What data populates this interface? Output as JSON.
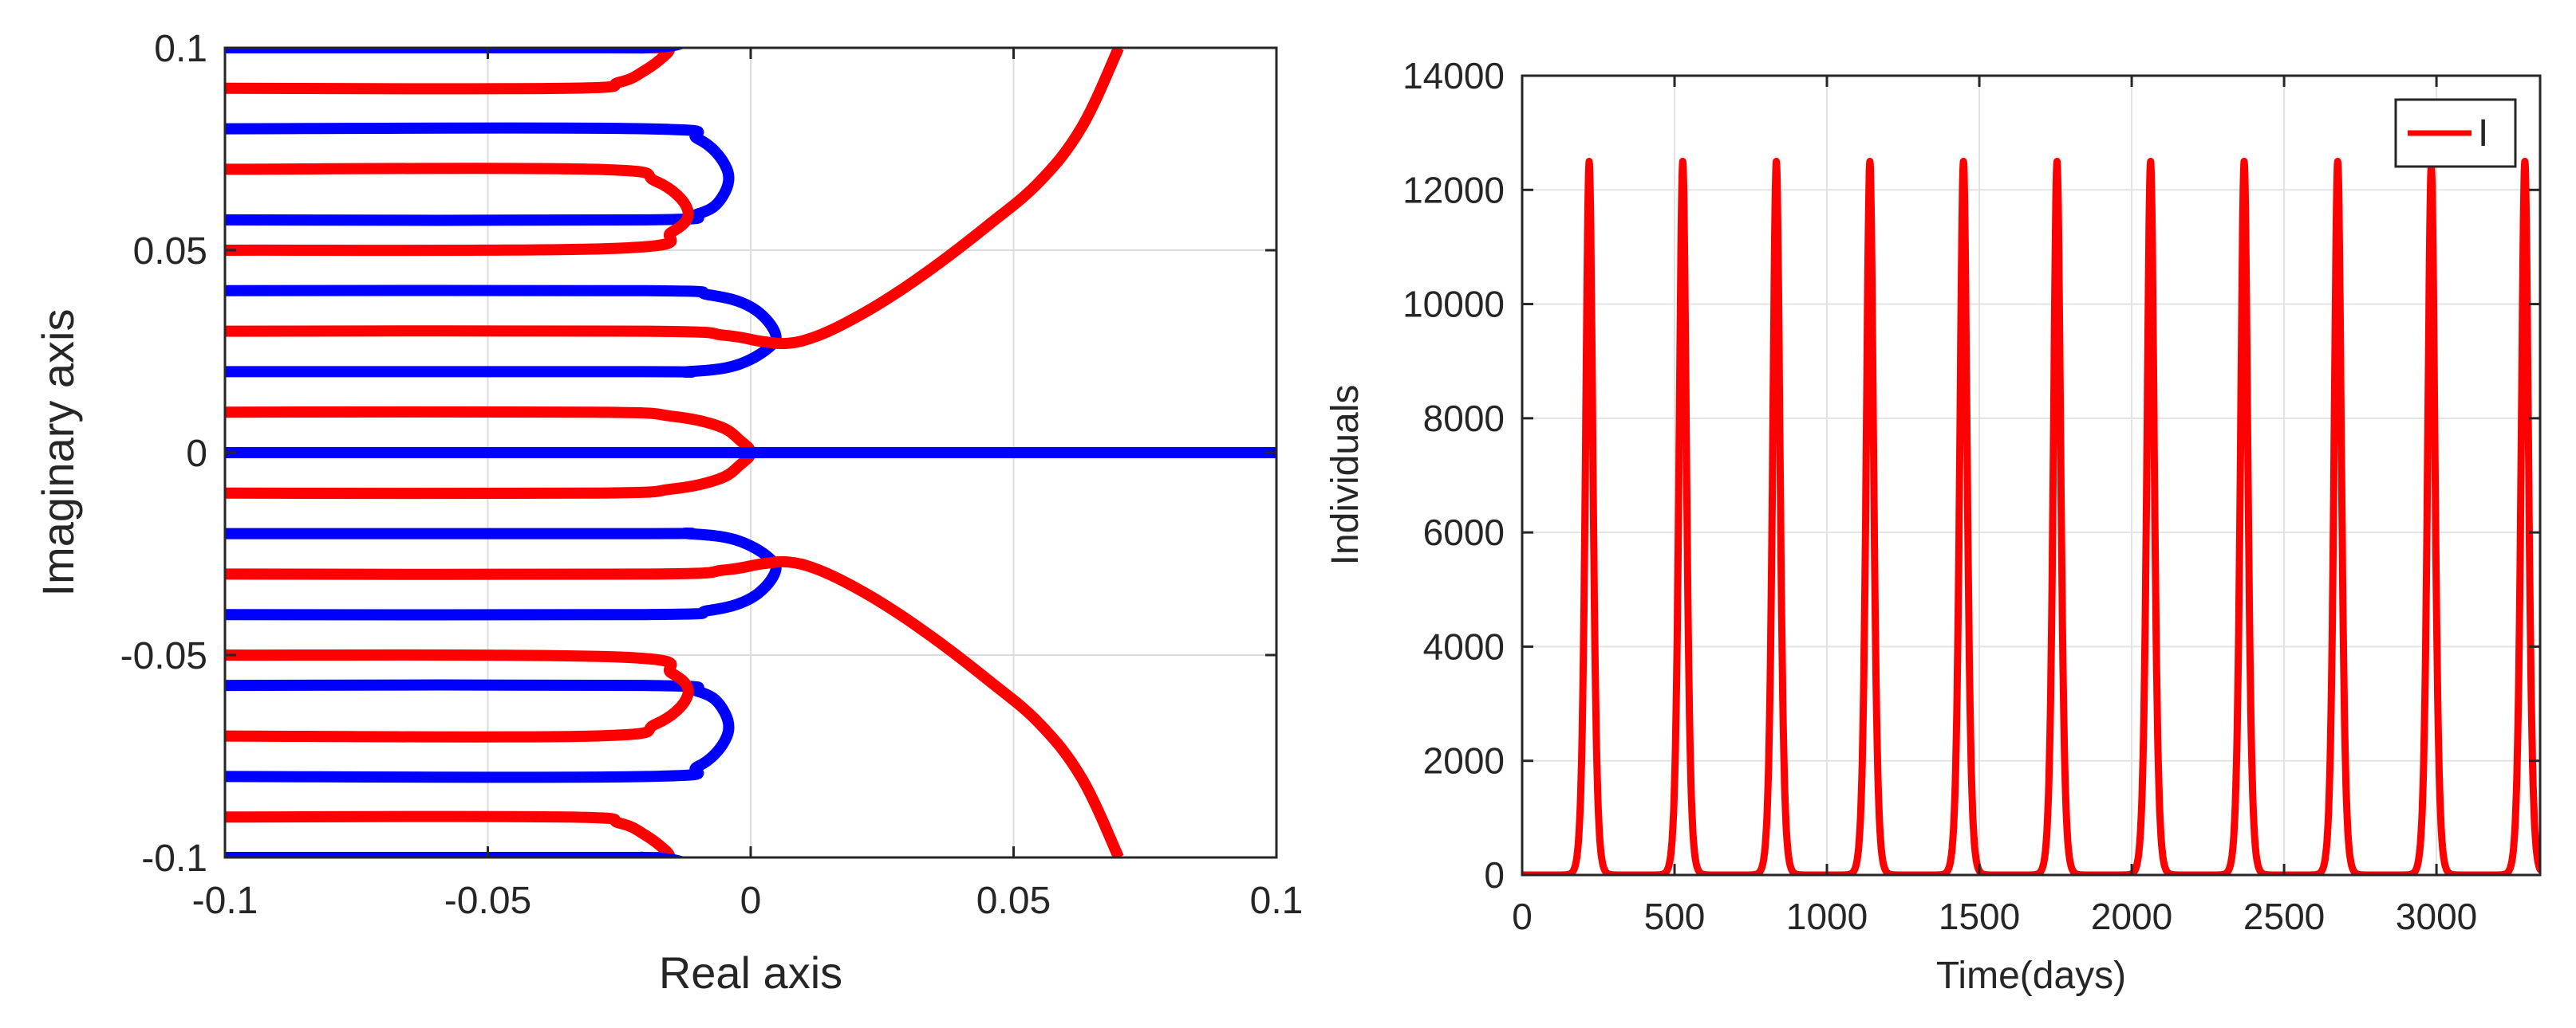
{
  "chart_data": [
    {
      "type": "line",
      "xlabel": "Real axis",
      "ylabel": "Imaginary axis",
      "xlim": [
        -0.1,
        0.1
      ],
      "ylim": [
        -0.1,
        0.1
      ],
      "xticks": [
        -0.1,
        -0.05,
        0,
        0.05,
        0.1
      ],
      "xtick_labels": [
        "-0.1",
        "-0.05",
        "0",
        "0.05",
        "0.1"
      ],
      "yticks": [
        -0.1,
        -0.05,
        0,
        0.05,
        0.1
      ],
      "ytick_labels": [
        "-0.1",
        "-0.05",
        "0",
        "0.05",
        "0.1"
      ],
      "grid": true,
      "colors": {
        "red": "#ff0000",
        "blue": "#0000ff"
      },
      "series": [
        {
          "color": "#ff0000",
          "kind": "branch",
          "x": [
            -0.1,
            -0.035,
            -0.025,
            -0.02,
            -0.016,
            -0.0155,
            -0.016,
            -0.02,
            -0.025,
            -0.035,
            -0.1
          ],
          "y": [
            0.09,
            0.09,
            0.0915,
            0.0945,
            0.0985,
            0.1,
            0.1,
            0.1,
            0.1,
            0.1,
            0.1
          ]
        },
        {
          "color": "#0000ff",
          "kind": "branch",
          "x": [
            -0.1,
            -0.03,
            -0.02,
            -0.015,
            -0.012
          ],
          "y": [
            0.1,
            0.1,
            0.1,
            0.1005,
            0.1015
          ]
        },
        {
          "color": "#0000ff",
          "kind": "loop",
          "x": [
            -0.1,
            -0.02,
            -0.01,
            -0.0045,
            -0.0055,
            -0.01,
            -0.02,
            -0.1
          ],
          "y": [
            0.08,
            0.08,
            0.0775,
            0.07,
            0.063,
            0.059,
            0.0575,
            0.0575
          ]
        },
        {
          "color": "#ff0000",
          "kind": "loop",
          "x": [
            -0.1,
            -0.03,
            -0.018,
            -0.012,
            -0.015,
            -0.025,
            -0.1
          ],
          "y": [
            0.07,
            0.07,
            0.067,
            0.06,
            0.0545,
            0.0505,
            0.05
          ]
        },
        {
          "color": "#0000ff",
          "kind": "loop",
          "x": [
            -0.1,
            -0.02,
            -0.008,
            0.0,
            0.0045,
            0.0035,
            -0.003,
            -0.012,
            -0.02,
            -0.1
          ],
          "y": [
            0.04,
            0.04,
            0.039,
            0.036,
            0.03,
            0.026,
            0.0215,
            0.02,
            0.02,
            0.02
          ]
        },
        {
          "color": "#ff0000",
          "kind": "branch",
          "x": [
            -0.1,
            -0.02,
            -0.005,
            0.002,
            0.007,
            0.012,
            0.018,
            0.026,
            0.035,
            0.045,
            0.055,
            0.063,
            0.07
          ],
          "y": [
            0.03,
            0.03,
            0.029,
            0.0275,
            0.027,
            0.0285,
            0.032,
            0.038,
            0.046,
            0.056,
            0.067,
            0.0805,
            0.1
          ]
        },
        {
          "color": "#ff0000",
          "kind": "loop",
          "x": [
            -0.1,
            -0.03,
            -0.015,
            -0.006,
            -0.002,
            0.0,
            -0.002,
            -0.006,
            -0.015,
            -0.03,
            -0.1
          ],
          "y": [
            0.01,
            0.01,
            0.009,
            0.0065,
            0.003,
            0.0,
            -0.003,
            -0.0065,
            -0.009,
            -0.01,
            -0.01
          ]
        },
        {
          "color": "#0000ff",
          "kind": "axis",
          "x": [
            -0.1,
            0.1
          ],
          "y": [
            0.0,
            0.0
          ]
        },
        {
          "color": "#0000ff",
          "kind": "loop",
          "x": [
            -0.1,
            -0.02,
            -0.008,
            0.0,
            0.0045,
            0.0035,
            -0.003,
            -0.012,
            -0.02,
            -0.1
          ],
          "y": [
            -0.04,
            -0.04,
            -0.039,
            -0.036,
            -0.03,
            -0.026,
            -0.0215,
            -0.02,
            -0.02,
            -0.02
          ]
        },
        {
          "color": "#ff0000",
          "kind": "branch",
          "x": [
            -0.1,
            -0.02,
            -0.005,
            0.002,
            0.007,
            0.012,
            0.018,
            0.026,
            0.035,
            0.045,
            0.055,
            0.063,
            0.07
          ],
          "y": [
            -0.03,
            -0.03,
            -0.029,
            -0.0275,
            -0.027,
            -0.0285,
            -0.032,
            -0.038,
            -0.046,
            -0.056,
            -0.067,
            -0.0805,
            -0.1
          ]
        },
        {
          "color": "#0000ff",
          "kind": "loop",
          "x": [
            -0.1,
            -0.02,
            -0.01,
            -0.0045,
            -0.0055,
            -0.01,
            -0.02,
            -0.1
          ],
          "y": [
            -0.08,
            -0.08,
            -0.0775,
            -0.07,
            -0.063,
            -0.059,
            -0.0575,
            -0.0575
          ]
        },
        {
          "color": "#ff0000",
          "kind": "loop",
          "x": [
            -0.1,
            -0.03,
            -0.018,
            -0.012,
            -0.015,
            -0.025,
            -0.1
          ],
          "y": [
            -0.07,
            -0.07,
            -0.067,
            -0.06,
            -0.0545,
            -0.0505,
            -0.05
          ]
        },
        {
          "color": "#ff0000",
          "kind": "branch",
          "x": [
            -0.1,
            -0.035,
            -0.025,
            -0.02,
            -0.016,
            -0.0155,
            -0.016,
            -0.02,
            -0.025,
            -0.035,
            -0.1
          ],
          "y": [
            -0.09,
            -0.09,
            -0.0915,
            -0.0945,
            -0.0985,
            -0.1,
            -0.1,
            -0.1,
            -0.1,
            -0.1,
            -0.1
          ]
        },
        {
          "color": "#0000ff",
          "kind": "branch",
          "x": [
            -0.1,
            -0.03,
            -0.02,
            -0.015,
            -0.012
          ],
          "y": [
            -0.1,
            -0.1,
            -0.1,
            -0.1005,
            -0.1015
          ]
        }
      ]
    },
    {
      "type": "line",
      "xlabel": "Time(days)",
      "ylabel": "Individuals",
      "xlim": [
        0,
        3340
      ],
      "ylim": [
        0,
        14000
      ],
      "xticks": [
        0,
        500,
        1000,
        1500,
        2000,
        2500,
        3000
      ],
      "xtick_labels": [
        "0",
        "500",
        "1000",
        "1500",
        "2000",
        "2500",
        "3000"
      ],
      "yticks": [
        0,
        2000,
        4000,
        6000,
        8000,
        10000,
        12000,
        14000
      ],
      "ytick_labels": [
        "0",
        "2000",
        "4000",
        "6000",
        "8000",
        "10000",
        "12000",
        "14000"
      ],
      "grid": true,
      "legend": {
        "position": "top-right",
        "entries": [
          "I"
        ]
      },
      "series": [
        {
          "name": "I",
          "color": "#ff0000",
          "peak_times": [
            220,
            527,
            834,
            1141,
            1448,
            1755,
            2062,
            2369,
            2676,
            2983,
            3290
          ],
          "peak_values": [
            12500,
            12500,
            12500,
            12500,
            12500,
            12500,
            12500,
            12500,
            12500,
            12400,
            12500
          ],
          "baseline": 0,
          "end_value": 500
        }
      ]
    }
  ]
}
